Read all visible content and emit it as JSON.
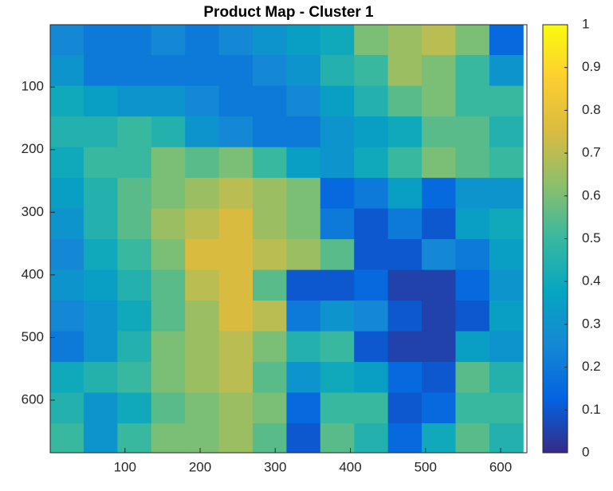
{
  "chart_data": {
    "type": "heatmap",
    "title": "Product Map - Cluster 1",
    "colormap": "parula",
    "x": [
      22.5,
      67.5,
      112.5,
      157.5,
      202.5,
      247.5,
      292.5,
      337.5,
      382.5,
      427.5,
      472.5,
      517.5,
      562.5,
      607.5
    ],
    "y": [
      24.5,
      73.5,
      122.5,
      171.5,
      220.5,
      269.5,
      318.5,
      367.5,
      416.5,
      465.5,
      514.5,
      563.5,
      612.5,
      661.5
    ],
    "values": [
      [
        0.25,
        0.2,
        0.2,
        0.25,
        0.2,
        0.25,
        0.3,
        0.35,
        0.4,
        0.6,
        0.65,
        0.7,
        0.6,
        0.15
      ],
      [
        0.3,
        0.2,
        0.2,
        0.2,
        0.2,
        0.2,
        0.25,
        0.3,
        0.45,
        0.5,
        0.65,
        0.6,
        0.5,
        0.3
      ],
      [
        0.4,
        0.35,
        0.3,
        0.3,
        0.25,
        0.2,
        0.2,
        0.25,
        0.35,
        0.45,
        0.55,
        0.6,
        0.5,
        0.5
      ],
      [
        0.45,
        0.45,
        0.5,
        0.45,
        0.3,
        0.25,
        0.2,
        0.2,
        0.3,
        0.35,
        0.4,
        0.55,
        0.55,
        0.45
      ],
      [
        0.4,
        0.5,
        0.5,
        0.6,
        0.55,
        0.6,
        0.5,
        0.35,
        0.3,
        0.4,
        0.5,
        0.6,
        0.55,
        0.5
      ],
      [
        0.35,
        0.45,
        0.55,
        0.6,
        0.65,
        0.7,
        0.65,
        0.6,
        0.15,
        0.2,
        0.35,
        0.15,
        0.3,
        0.3
      ],
      [
        0.3,
        0.45,
        0.55,
        0.65,
        0.7,
        0.75,
        0.65,
        0.6,
        0.2,
        0.1,
        0.2,
        0.1,
        0.35,
        0.4
      ],
      [
        0.25,
        0.4,
        0.5,
        0.6,
        0.75,
        0.75,
        0.7,
        0.65,
        0.55,
        0.1,
        0.1,
        0.25,
        0.2,
        0.35
      ],
      [
        0.3,
        0.35,
        0.45,
        0.55,
        0.7,
        0.75,
        0.55,
        0.1,
        0.1,
        0.15,
        0.05,
        0.05,
        0.15,
        0.3
      ],
      [
        0.25,
        0.3,
        0.4,
        0.55,
        0.65,
        0.75,
        0.7,
        0.2,
        0.3,
        0.25,
        0.1,
        0.05,
        0.1,
        0.35
      ],
      [
        0.2,
        0.3,
        0.45,
        0.6,
        0.65,
        0.7,
        0.6,
        0.45,
        0.5,
        0.1,
        0.05,
        0.05,
        0.35,
        0.3
      ],
      [
        0.4,
        0.45,
        0.5,
        0.6,
        0.65,
        0.7,
        0.55,
        0.3,
        0.4,
        0.35,
        0.15,
        0.1,
        0.55,
        0.45
      ],
      [
        0.45,
        0.3,
        0.4,
        0.55,
        0.6,
        0.65,
        0.6,
        0.15,
        0.5,
        0.5,
        0.1,
        0.15,
        0.5,
        0.5
      ],
      [
        0.5,
        0.3,
        0.5,
        0.6,
        0.6,
        0.65,
        0.55,
        0.1,
        0.55,
        0.45,
        0.15,
        0.4,
        0.55,
        0.45
      ]
    ],
    "xlim": [
      0.5,
      635
    ],
    "ylim": [
      0.5,
      684
    ],
    "y_reversed": true,
    "xticks": [
      100,
      200,
      300,
      400,
      500,
      600
    ],
    "yticks": [
      100,
      200,
      300,
      400,
      500,
      600
    ],
    "clim": [
      0,
      1
    ],
    "cticks": [
      0,
      0.1,
      0.2,
      0.3,
      0.4,
      0.5,
      0.6,
      0.7,
      0.8,
      0.9,
      1
    ]
  }
}
